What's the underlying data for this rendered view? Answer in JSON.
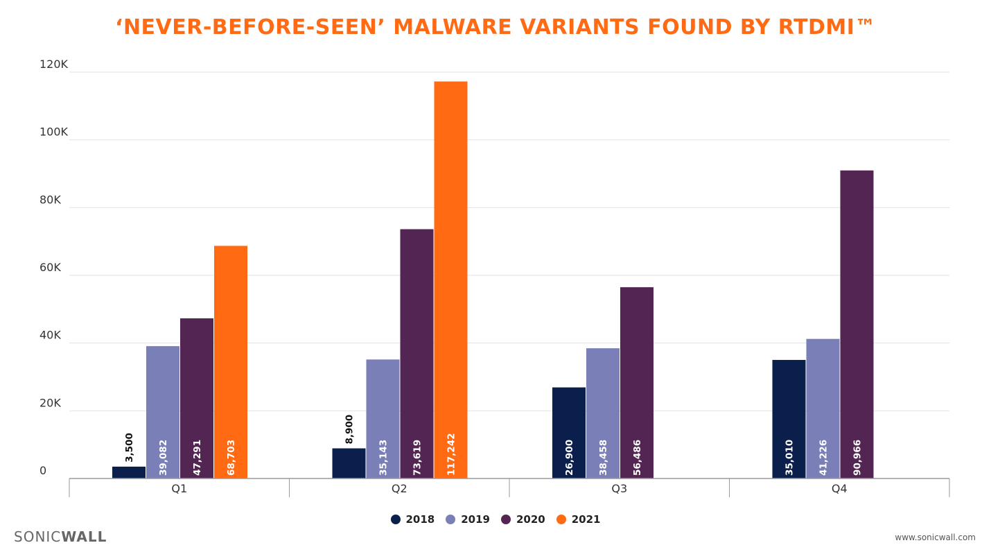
{
  "chart_data": {
    "type": "bar",
    "title": "‘NEVER-BEFORE-SEEN’ MALWARE VARIANTS FOUND BY RTDMI™",
    "categories": [
      "Q1",
      "Q2",
      "Q3",
      "Q4"
    ],
    "series": [
      {
        "name": "2018",
        "color": "#0b1f4d",
        "values": [
          3500,
          8900,
          26900,
          35010
        ],
        "labels": [
          "3,500",
          "8,900",
          "26,900",
          "35,010"
        ]
      },
      {
        "name": "2019",
        "color": "#7b7fb8",
        "values": [
          39082,
          35143,
          38458,
          41226
        ],
        "labels": [
          "39,082",
          "35,143",
          "38,458",
          "41,226"
        ]
      },
      {
        "name": "2020",
        "color": "#532552",
        "values": [
          47291,
          73619,
          56486,
          90966
        ],
        "labels": [
          "47,291",
          "73,619",
          "56,486",
          "90,966"
        ]
      },
      {
        "name": "2021",
        "color": "#ff6a13",
        "values": [
          68703,
          117242,
          null,
          null
        ],
        "labels": [
          "68,703",
          "117,242",
          "",
          ""
        ]
      }
    ],
    "y_ticks": [
      {
        "value": 0,
        "label": "0"
      },
      {
        "value": 20000,
        "label": "20K"
      },
      {
        "value": 40000,
        "label": "40K"
      },
      {
        "value": 60000,
        "label": "60K"
      },
      {
        "value": 80000,
        "label": "80K"
      },
      {
        "value": 100000,
        "label": "100K"
      },
      {
        "value": 120000,
        "label": "120K"
      }
    ],
    "ylim": [
      0,
      120000
    ],
    "grid": true,
    "legend_position": "bottom"
  },
  "brand": {
    "logo_part1": "SONIC",
    "logo_part2": "WALL",
    "url": "www.sonicwall.com"
  }
}
